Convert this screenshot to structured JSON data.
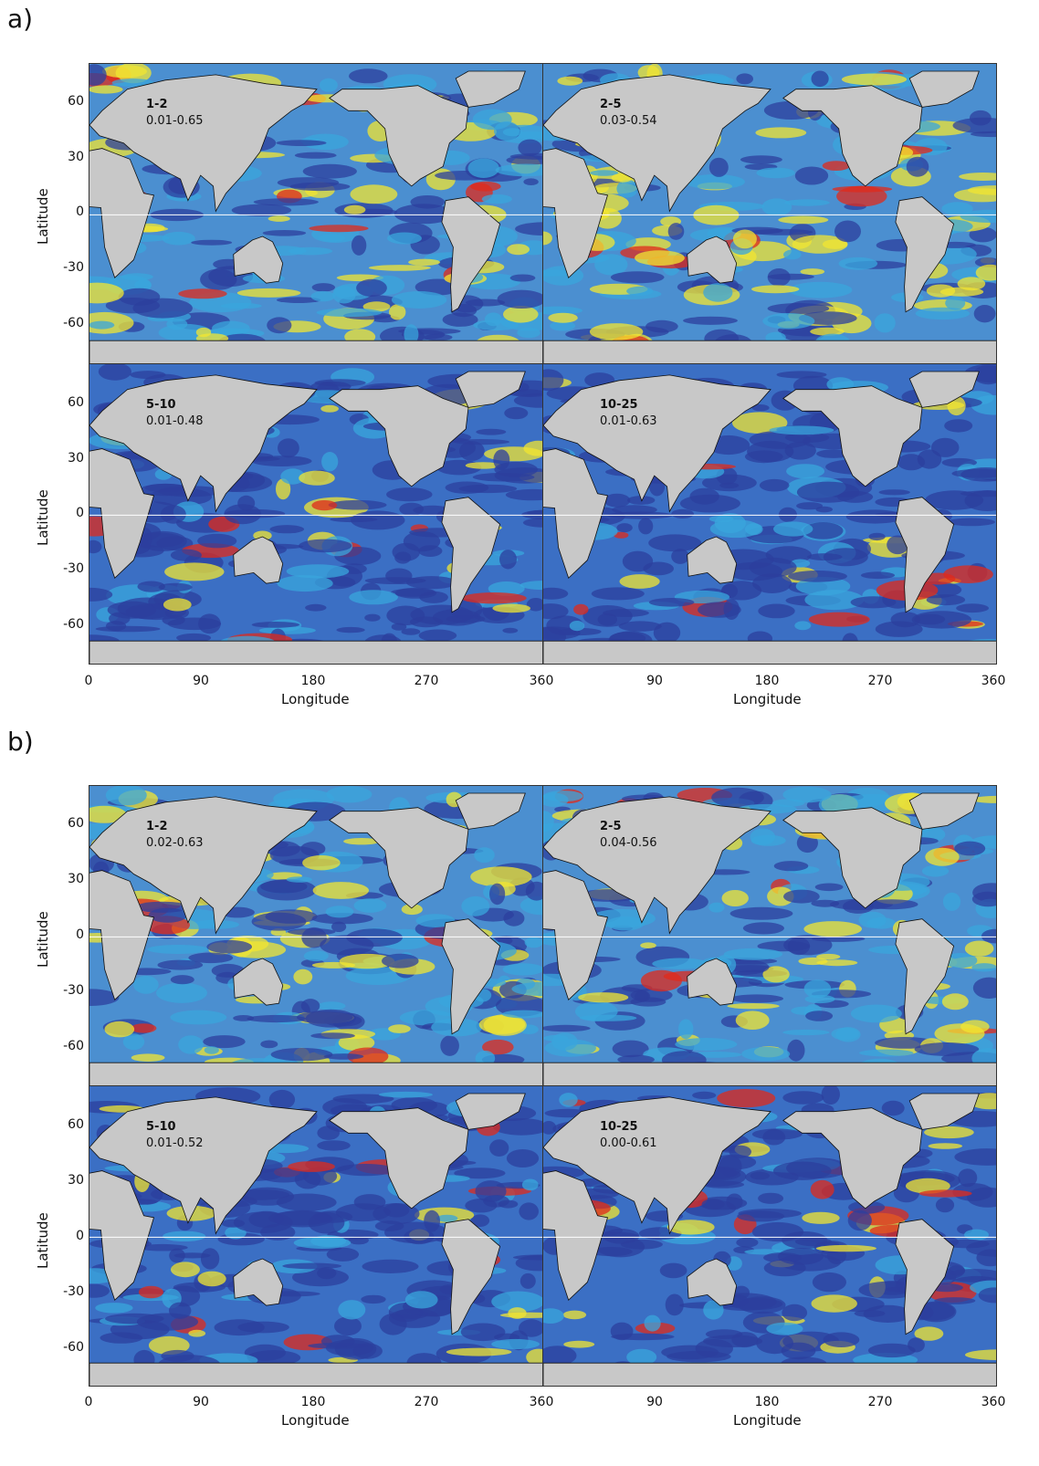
{
  "figures": [
    {
      "label": "a)",
      "panels": [
        {
          "band": "1-2",
          "range": "0.01-0.65"
        },
        {
          "band": "2-5",
          "range": "0.03-0.54"
        },
        {
          "band": "5-10",
          "range": "0.01-0.48"
        },
        {
          "band": "10-25",
          "range": "0.01-0.63"
        }
      ]
    },
    {
      "label": "b)",
      "panels": [
        {
          "band": "1-2",
          "range": "0.02-0.63"
        },
        {
          "band": "2-5",
          "range": "0.04-0.56"
        },
        {
          "band": "5-10",
          "range": "0.01-0.52"
        },
        {
          "band": "10-25",
          "range": "0.00-0.61"
        }
      ]
    }
  ],
  "axes": {
    "ylabel": "Latitude",
    "xlabel": "Longitude",
    "yticks": [
      "60",
      "30",
      "0",
      "-30",
      "-60"
    ],
    "xticks_left": [
      "0",
      "90",
      "180",
      "270",
      "360"
    ],
    "xticks_right": [
      "90",
      "180",
      "270",
      "360"
    ]
  },
  "colors": {
    "land": "#c8c8c8",
    "ocean_low": "#2c3f9e",
    "ocean_mid": "#3aa6dc",
    "ocean_high": "#f2e531",
    "ocean_peak": "#e0291b"
  }
}
